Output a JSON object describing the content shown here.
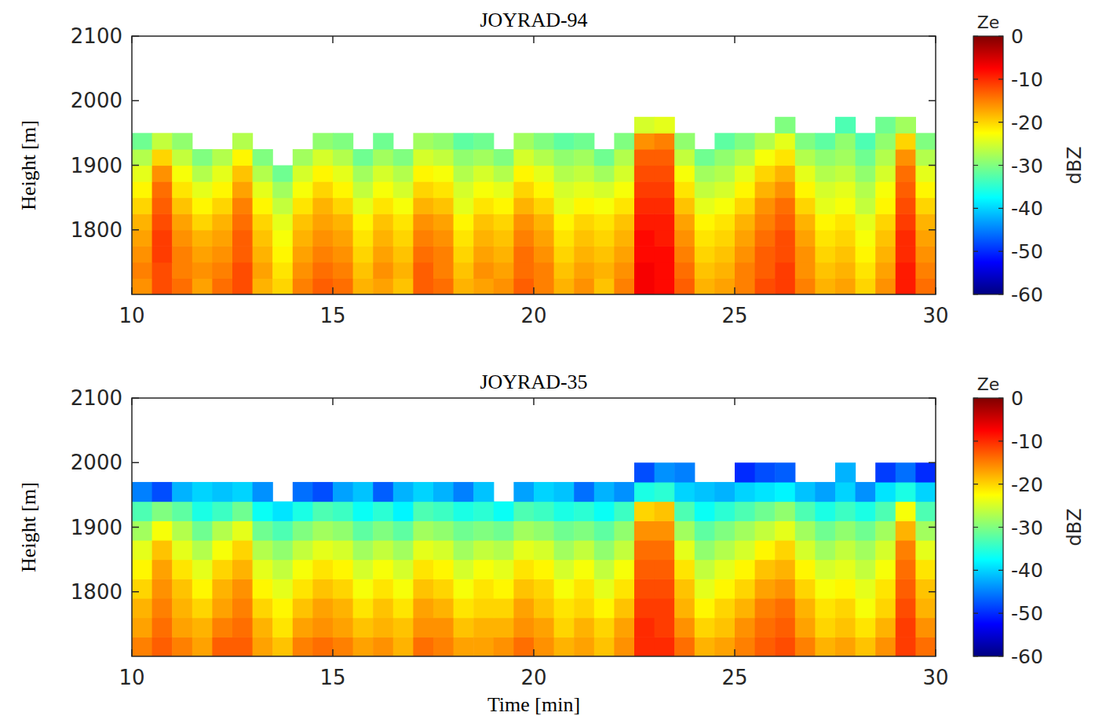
{
  "chart_data": [
    {
      "type": "heatmap",
      "title": "JOYRAD-94",
      "ylabel": "Height [m]",
      "xlim": [
        10,
        30
      ],
      "xticks": [
        10,
        15,
        20,
        25,
        30
      ],
      "ylim": [
        1700,
        2100
      ],
      "yticks": [
        1800,
        1900,
        2000,
        2100
      ],
      "colorbar_title": "Ze",
      "colorbar_label": "dBZ",
      "colorbar_range": [
        -60,
        0
      ],
      "colorbar_ticks": [
        0,
        -10,
        -20,
        -30,
        -40,
        -50,
        -60
      ],
      "x": [
        10.25,
        10.75,
        11.25,
        11.75,
        12.25,
        12.75,
        13.25,
        13.75,
        14.25,
        14.75,
        15.25,
        15.75,
        16.25,
        16.75,
        17.25,
        17.75,
        18.25,
        18.75,
        19.25,
        19.75,
        20.25,
        20.75,
        21.25,
        21.75,
        22.25,
        22.75,
        23.25,
        23.75,
        24.25,
        24.75,
        25.25,
        25.75,
        26.25,
        26.75,
        27.25,
        27.75,
        28.25,
        28.75,
        29.25,
        29.75
      ],
      "y": [
        1712.5,
        1737.5,
        1762.5,
        1787.5,
        1812.5,
        1837.5,
        1862.5,
        1887.5,
        1912.5,
        1937.5,
        1962.5
      ],
      "values": [
        [
          -16,
          -12,
          -14,
          -17,
          -14,
          -12,
          -18,
          -20,
          -15,
          -13,
          -14,
          -18,
          -17,
          -19,
          -13,
          -14,
          -18,
          -17,
          -16,
          -13,
          -15,
          -18,
          -16,
          -19,
          -15,
          -7,
          -8,
          -13,
          -18,
          -17,
          -15,
          -12,
          -11,
          -15,
          -18,
          -17,
          -20,
          -16,
          -9,
          -14
        ],
        [
          -15,
          -12,
          -15,
          -16,
          -15,
          -12,
          -17,
          -21,
          -16,
          -14,
          -15,
          -19,
          -16,
          -18,
          -13,
          -15,
          -19,
          -16,
          -17,
          -14,
          -15,
          -19,
          -17,
          -18,
          -16,
          -7,
          -8,
          -14,
          -19,
          -18,
          -15,
          -13,
          -11,
          -16,
          -19,
          -18,
          -21,
          -17,
          -9,
          -15
        ],
        [
          -16,
          -11,
          -15,
          -17,
          -16,
          -13,
          -18,
          -22,
          -17,
          -15,
          -16,
          -20,
          -17,
          -19,
          -14,
          -15,
          -20,
          -17,
          -18,
          -14,
          -16,
          -20,
          -18,
          -19,
          -17,
          -8,
          -8,
          -15,
          -20,
          -19,
          -16,
          -13,
          -12,
          -16,
          -20,
          -19,
          -22,
          -18,
          -10,
          -16
        ],
        [
          -17,
          -11,
          -16,
          -18,
          -17,
          -13,
          -19,
          -23,
          -18,
          -16,
          -17,
          -21,
          -18,
          -20,
          -15,
          -16,
          -21,
          -18,
          -19,
          -15,
          -17,
          -21,
          -19,
          -20,
          -18,
          -8,
          -9,
          -16,
          -21,
          -20,
          -17,
          -14,
          -12,
          -17,
          -21,
          -20,
          -23,
          -19,
          -10,
          -17
        ],
        [
          -18,
          -12,
          -17,
          -20,
          -18,
          -14,
          -20,
          -24,
          -19,
          -17,
          -18,
          -22,
          -19,
          -21,
          -16,
          -17,
          -22,
          -19,
          -20,
          -16,
          -18,
          -22,
          -20,
          -21,
          -19,
          -9,
          -9,
          -17,
          -22,
          -21,
          -18,
          -15,
          -13,
          -18,
          -22,
          -21,
          -24,
          -20,
          -11,
          -18
        ],
        [
          -20,
          -13,
          -19,
          -22,
          -20,
          -15,
          -22,
          -26,
          -21,
          -18,
          -20,
          -24,
          -21,
          -23,
          -18,
          -19,
          -24,
          -21,
          -22,
          -18,
          -20,
          -24,
          -22,
          -23,
          -21,
          -10,
          -10,
          -19,
          -24,
          -23,
          -20,
          -16,
          -14,
          -20,
          -24,
          -23,
          -26,
          -22,
          -12,
          -20
        ],
        [
          -22,
          -14,
          -21,
          -24,
          -22,
          -17,
          -24,
          -28,
          -23,
          -20,
          -22,
          -26,
          -23,
          -25,
          -20,
          -21,
          -25,
          -23,
          -24,
          -20,
          -22,
          -25,
          -24,
          -25,
          -23,
          -11,
          -11,
          -21,
          -26,
          -25,
          -22,
          -18,
          -16,
          -22,
          -25,
          -24,
          -27,
          -23,
          -13,
          -22
        ],
        [
          -24,
          -16,
          -23,
          -27,
          -24,
          -19,
          -27,
          -31,
          -25,
          -22,
          -24,
          -28,
          -25,
          -27,
          -22,
          -23,
          -27,
          -25,
          -27,
          -22,
          -24,
          -27,
          -26,
          -28,
          -25,
          -12,
          -12,
          -23,
          -28,
          -27,
          -24,
          -20,
          -18,
          -24,
          -27,
          -26,
          -29,
          -25,
          -14,
          -24
        ],
        [
          -27,
          -20,
          -26,
          -30,
          -27,
          -22,
          -30,
          null,
          -28,
          -25,
          -27,
          -31,
          -28,
          -30,
          -25,
          -26,
          -29,
          -28,
          -30,
          -25,
          -27,
          -29,
          -28,
          -31,
          -27,
          -13,
          -13,
          -26,
          -31,
          -29,
          -27,
          -23,
          -21,
          -27,
          -29,
          -28,
          -31,
          -27,
          -16,
          -27
        ],
        [
          -31,
          -26,
          -29,
          null,
          null,
          -27,
          null,
          null,
          null,
          -29,
          -30,
          null,
          -31,
          null,
          -28,
          -29,
          -32,
          -31,
          null,
          -28,
          -30,
          -32,
          -31,
          null,
          -30,
          -16,
          -15,
          -29,
          null,
          -32,
          -30,
          -27,
          -24,
          -30,
          -32,
          -29,
          -33,
          -29,
          -20,
          -30
        ],
        [
          null,
          null,
          null,
          null,
          null,
          null,
          null,
          null,
          null,
          null,
          null,
          null,
          null,
          null,
          null,
          null,
          null,
          null,
          null,
          null,
          null,
          null,
          null,
          null,
          null,
          -25,
          -24,
          null,
          null,
          null,
          null,
          null,
          -30,
          null,
          null,
          -33,
          null,
          -31,
          -28,
          null
        ]
      ]
    },
    {
      "type": "heatmap",
      "title": "JOYRAD-35",
      "xlabel": "Time [min]",
      "ylabel": "Height [m]",
      "xlim": [
        10,
        30
      ],
      "xticks": [
        10,
        15,
        20,
        25,
        30
      ],
      "ylim": [
        1700,
        2100
      ],
      "yticks": [
        1800,
        1900,
        2000,
        2100
      ],
      "colorbar_title": "Ze",
      "colorbar_label": "dBZ",
      "colorbar_range": [
        -60,
        0
      ],
      "colorbar_ticks": [
        0,
        -10,
        -20,
        -30,
        -40,
        -50,
        -60
      ],
      "x": [
        10.25,
        10.75,
        11.25,
        11.75,
        12.25,
        12.75,
        13.25,
        13.75,
        14.25,
        14.75,
        15.25,
        15.75,
        16.25,
        16.75,
        17.25,
        17.75,
        18.25,
        18.75,
        19.25,
        19.75,
        20.25,
        20.75,
        21.25,
        21.75,
        22.25,
        22.75,
        23.25,
        23.75,
        24.25,
        24.75,
        25.25,
        25.75,
        26.25,
        26.75,
        27.25,
        27.75,
        28.25,
        28.75,
        29.25,
        29.75
      ],
      "y": [
        1715,
        1745,
        1775,
        1805,
        1835,
        1865,
        1895,
        1925,
        1955,
        1985
      ],
      "values": [
        [
          -15,
          -13,
          -15,
          -17,
          -13,
          -13,
          -17,
          -19,
          -15,
          -14,
          -15,
          -17,
          -16,
          -18,
          -14,
          -15,
          -17,
          -17,
          -16,
          -14,
          -16,
          -18,
          -17,
          -19,
          -16,
          -10,
          -10,
          -14,
          -18,
          -17,
          -15,
          -13,
          -12,
          -15,
          -18,
          -17,
          -19,
          -16,
          -11,
          -14
        ],
        [
          -17,
          -14,
          -17,
          -18,
          -15,
          -14,
          -18,
          -21,
          -17,
          -16,
          -17,
          -19,
          -18,
          -19,
          -16,
          -16,
          -19,
          -18,
          -18,
          -16,
          -17,
          -20,
          -18,
          -20,
          -17,
          -10,
          -11,
          -16,
          -20,
          -19,
          -16,
          -14,
          -13,
          -17,
          -20,
          -19,
          -21,
          -18,
          -11,
          -16
        ],
        [
          -18,
          -15,
          -18,
          -20,
          -17,
          -15,
          -20,
          -22,
          -19,
          -17,
          -18,
          -21,
          -19,
          -21,
          -17,
          -18,
          -21,
          -20,
          -20,
          -17,
          -19,
          -21,
          -20,
          -22,
          -19,
          -11,
          -11,
          -18,
          -22,
          -20,
          -18,
          -15,
          -14,
          -18,
          -21,
          -20,
          -23,
          -20,
          -12,
          -18
        ],
        [
          -20,
          -16,
          -19,
          -22,
          -18,
          -16,
          -22,
          -24,
          -21,
          -19,
          -20,
          -23,
          -21,
          -23,
          -19,
          -20,
          -23,
          -21,
          -22,
          -19,
          -20,
          -23,
          -21,
          -24,
          -21,
          -12,
          -12,
          -19,
          -24,
          -22,
          -20,
          -17,
          -16,
          -20,
          -23,
          -22,
          -24,
          -21,
          -13,
          -19
        ],
        [
          -22,
          -17,
          -21,
          -24,
          -20,
          -18,
          -24,
          -26,
          -23,
          -21,
          -22,
          -25,
          -23,
          -25,
          -21,
          -22,
          -25,
          -23,
          -24,
          -21,
          -22,
          -25,
          -23,
          -26,
          -23,
          -13,
          -13,
          -21,
          -26,
          -24,
          -22,
          -19,
          -18,
          -22,
          -25,
          -24,
          -26,
          -23,
          -14,
          -21
        ],
        [
          -24,
          -19,
          -24,
          -27,
          -23,
          -20,
          -27,
          -29,
          -26,
          -24,
          -25,
          -28,
          -26,
          -28,
          -24,
          -25,
          -28,
          -26,
          -27,
          -24,
          -25,
          -28,
          -26,
          -29,
          -26,
          -14,
          -14,
          -24,
          -29,
          -27,
          -25,
          -22,
          -20,
          -25,
          -28,
          -26,
          -28,
          -25,
          -15,
          -24
        ],
        [
          -28,
          -23,
          -27,
          -31,
          -27,
          -24,
          -31,
          -33,
          -30,
          -28,
          -29,
          -32,
          -30,
          -32,
          -28,
          -29,
          -31,
          -30,
          -31,
          -28,
          -29,
          -31,
          -30,
          -32,
          -29,
          -16,
          -16,
          -28,
          -32,
          -30,
          -28,
          -26,
          -24,
          -28,
          -31,
          -29,
          -31,
          -28,
          -18,
          -28
        ],
        [
          -33,
          -30,
          -32,
          -36,
          -34,
          -31,
          -37,
          -39,
          -36,
          -33,
          -34,
          -37,
          -35,
          -38,
          -33,
          -34,
          -36,
          -35,
          -37,
          -33,
          -34,
          -36,
          -35,
          -37,
          -34,
          -20,
          -19,
          -33,
          -37,
          -35,
          -33,
          -31,
          -29,
          -33,
          -36,
          -34,
          -36,
          -33,
          -23,
          -33
        ],
        [
          -45,
          -48,
          -42,
          -40,
          -41,
          -40,
          -44,
          null,
          -46,
          -48,
          -43,
          -41,
          -47,
          -42,
          -40,
          -42,
          -45,
          -41,
          null,
          -43,
          -40,
          -41,
          -46,
          -42,
          -44,
          -36,
          -35,
          -40,
          -41,
          -42,
          -40,
          -39,
          -38,
          -41,
          -43,
          -40,
          -44,
          -39,
          -36,
          -40
        ],
        [
          null,
          null,
          null,
          null,
          null,
          null,
          null,
          null,
          null,
          null,
          null,
          null,
          null,
          null,
          null,
          null,
          null,
          null,
          null,
          null,
          null,
          null,
          null,
          null,
          null,
          -48,
          -44,
          -45,
          null,
          null,
          -50,
          -48,
          -47,
          null,
          null,
          -42,
          null,
          -49,
          -46,
          -50
        ]
      ]
    }
  ]
}
